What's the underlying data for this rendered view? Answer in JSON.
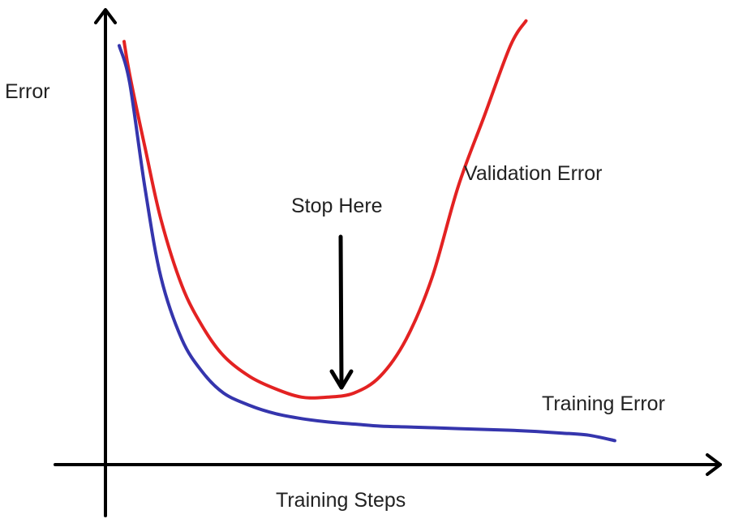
{
  "chart_data": {
    "type": "line",
    "title": "",
    "xlabel": "Training Steps",
    "ylabel": "Error",
    "xlim": [
      0,
      100
    ],
    "ylim": [
      0,
      100
    ],
    "grid": false,
    "legend": "none",
    "x": [
      0,
      2,
      5,
      10,
      15,
      20,
      25,
      30,
      35,
      40,
      45,
      50,
      55,
      60,
      65,
      70,
      75,
      80,
      85,
      90,
      95,
      100
    ],
    "series": [
      {
        "name": "Validation Error",
        "color": "#e32222",
        "x": [
          0,
          2,
          5,
          8,
          12,
          16,
          20,
          25,
          30,
          35,
          40,
          45,
          50,
          55,
          60,
          65,
          70,
          75,
          78
        ],
        "values": [
          98,
          90,
          72,
          55,
          39,
          29,
          22,
          17,
          14,
          12,
          12,
          13,
          17,
          26,
          41,
          63,
          80,
          97,
          103
        ]
      },
      {
        "name": "Training Error",
        "color": "#3535ad",
        "x": [
          0,
          2,
          5,
          8,
          12,
          16,
          20,
          25,
          30,
          35,
          40,
          45,
          50,
          55,
          60,
          65,
          70,
          75,
          80,
          85,
          90,
          95
        ],
        "values": [
          97,
          88,
          62,
          41,
          26,
          18,
          13,
          10,
          8,
          6.8,
          6,
          5.5,
          5,
          4.8,
          4.6,
          4.4,
          4.2,
          4,
          3.7,
          3.3,
          2.8,
          1.5
        ]
      }
    ],
    "annotations": [
      {
        "text": "Stop Here",
        "x": 38,
        "arrow_to": [
          38,
          13
        ]
      }
    ]
  }
}
